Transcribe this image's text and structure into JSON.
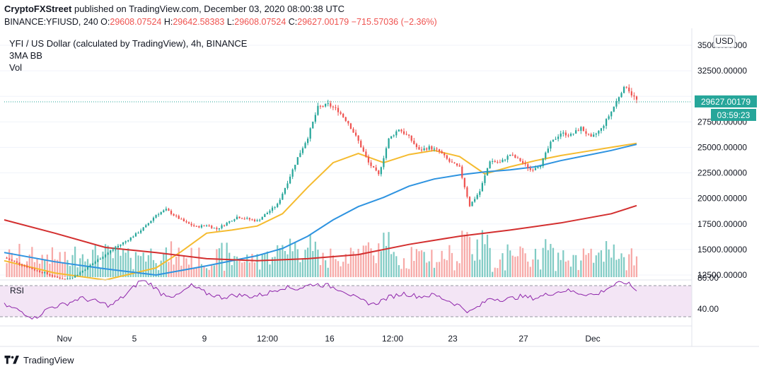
{
  "header": {
    "publisher": "CryptoFXStreet",
    "published_text": "published on TradingView.com, December 03, 2020 08:00:38 UTC",
    "symbol_line": "BINANCE:YFIUSD, 240",
    "open_label": "O:",
    "open": "29608.07524",
    "high_label": "H:",
    "high": "29642.58383",
    "low_label": "L:",
    "low": "29608.07524",
    "close_label": "C:",
    "close": "29627.00179",
    "price_now": "29627.00179",
    "change": "−715.57036 (−2.36%)"
  },
  "legend": {
    "pair": "YFI / US Dollar (calculated by TradingView), 4h, BINANCE",
    "indicator": "3MA BB",
    "volume": "Vol"
  },
  "price_axis": {
    "currency": "USD",
    "ticks": [
      "35000.00000",
      "32500.00000",
      "27500.00000",
      "25000.00000",
      "22500.00000",
      "20000.00000",
      "17500.00000",
      "15000.00000",
      "12500.00000"
    ],
    "last_price": "29627.00179",
    "countdown": "03:59:23"
  },
  "rsi": {
    "label": "RSI",
    "ticks": [
      "80.00",
      "40.00"
    ],
    "upper_band": 70,
    "lower_band": 30,
    "ylim": [
      10,
      90
    ]
  },
  "time_axis": {
    "ticks": [
      "Nov",
      "5",
      "9",
      "12:00",
      "16",
      "12:00",
      "23",
      "27",
      "Dec"
    ]
  },
  "footer": {
    "brand": "TradingView"
  },
  "colors": {
    "up": "#26a69a",
    "down": "#ef5350",
    "vol_up": "#80cbc4",
    "vol_down": "#f7a9a7",
    "ma_fast": "#f5bb2f",
    "ma_mid": "#2e93e0",
    "ma_slow": "#d32f2f",
    "rsi_line": "#8e24aa",
    "rsi_fill": "#f3e5f5"
  },
  "chart_data": {
    "type": "candlestick",
    "ylim": [
      12500,
      35000
    ],
    "close_path": [
      [
        0,
        14200
      ],
      [
        4,
        13800
      ],
      [
        8,
        13400
      ],
      [
        12,
        13000
      ],
      [
        16,
        12700
      ],
      [
        20,
        12300
      ],
      [
        24,
        12100
      ],
      [
        28,
        12400
      ],
      [
        32,
        13100
      ],
      [
        36,
        13800
      ],
      [
        40,
        14500
      ],
      [
        44,
        15200
      ],
      [
        48,
        15800
      ],
      [
        52,
        16500
      ],
      [
        56,
        17300
      ],
      [
        60,
        18400
      ],
      [
        64,
        18900
      ],
      [
        68,
        18200
      ],
      [
        72,
        17600
      ],
      [
        76,
        17200
      ],
      [
        80,
        17400
      ],
      [
        84,
        17000
      ],
      [
        88,
        17600
      ],
      [
        92,
        18200
      ],
      [
        96,
        18000
      ],
      [
        100,
        17800
      ],
      [
        104,
        18600
      ],
      [
        108,
        19400
      ],
      [
        112,
        21600
      ],
      [
        116,
        24000
      ],
      [
        120,
        26000
      ],
      [
        124,
        28900
      ],
      [
        128,
        29200
      ],
      [
        132,
        28600
      ],
      [
        136,
        27400
      ],
      [
        140,
        25600
      ],
      [
        144,
        23500
      ],
      [
        148,
        22300
      ],
      [
        152,
        25800
      ],
      [
        156,
        26800
      ],
      [
        160,
        26000
      ],
      [
        164,
        24700
      ],
      [
        168,
        25000
      ],
      [
        172,
        24600
      ],
      [
        176,
        23600
      ],
      [
        180,
        23000
      ],
      [
        184,
        19300
      ],
      [
        188,
        20700
      ],
      [
        192,
        23700
      ],
      [
        196,
        23500
      ],
      [
        200,
        24300
      ],
      [
        204,
        23700
      ],
      [
        208,
        22800
      ],
      [
        212,
        23300
      ],
      [
        216,
        25400
      ],
      [
        220,
        26400
      ],
      [
        224,
        26200
      ],
      [
        228,
        26900
      ],
      [
        232,
        25900
      ],
      [
        236,
        26800
      ],
      [
        240,
        28500
      ],
      [
        244,
        30500
      ],
      [
        246,
        31000
      ],
      [
        248,
        30200
      ],
      [
        250,
        29627
      ]
    ],
    "ma_fast": [
      [
        0,
        13900
      ],
      [
        20,
        12700
      ],
      [
        40,
        12000
      ],
      [
        60,
        13200
      ],
      [
        70,
        14800
      ],
      [
        80,
        16600
      ],
      [
        90,
        16900
      ],
      [
        100,
        17300
      ],
      [
        110,
        18500
      ],
      [
        120,
        21100
      ],
      [
        130,
        23500
      ],
      [
        140,
        24400
      ],
      [
        150,
        23500
      ],
      [
        160,
        24300
      ],
      [
        170,
        24700
      ],
      [
        180,
        24100
      ],
      [
        190,
        22400
      ],
      [
        200,
        23100
      ],
      [
        210,
        23700
      ],
      [
        220,
        24200
      ],
      [
        230,
        24600
      ],
      [
        240,
        25000
      ],
      [
        250,
        25400
      ]
    ],
    "ma_mid": [
      [
        0,
        14700
      ],
      [
        20,
        13800
      ],
      [
        40,
        13100
      ],
      [
        60,
        12500
      ],
      [
        80,
        13400
      ],
      [
        100,
        14400
      ],
      [
        110,
        15100
      ],
      [
        120,
        16300
      ],
      [
        130,
        17900
      ],
      [
        140,
        19200
      ],
      [
        150,
        20100
      ],
      [
        160,
        21200
      ],
      [
        170,
        21900
      ],
      [
        180,
        22300
      ],
      [
        190,
        22600
      ],
      [
        200,
        22800
      ],
      [
        210,
        23100
      ],
      [
        220,
        23700
      ],
      [
        230,
        24200
      ],
      [
        240,
        24700
      ],
      [
        250,
        25300
      ]
    ],
    "ma_slow": [
      [
        0,
        17900
      ],
      [
        20,
        16600
      ],
      [
        40,
        15200
      ],
      [
        60,
        14700
      ],
      [
        80,
        14100
      ],
      [
        100,
        13900
      ],
      [
        120,
        14100
      ],
      [
        140,
        14500
      ],
      [
        160,
        15500
      ],
      [
        180,
        16300
      ],
      [
        200,
        16900
      ],
      [
        220,
        17600
      ],
      [
        240,
        18500
      ],
      [
        250,
        19300
      ]
    ],
    "rsi_path": [
      [
        0,
        45
      ],
      [
        6,
        38
      ],
      [
        12,
        28
      ],
      [
        18,
        42
      ],
      [
        24,
        46
      ],
      [
        30,
        54
      ],
      [
        36,
        50
      ],
      [
        42,
        44
      ],
      [
        48,
        58
      ],
      [
        54,
        77
      ],
      [
        58,
        72
      ],
      [
        62,
        60
      ],
      [
        68,
        56
      ],
      [
        74,
        70
      ],
      [
        80,
        60
      ],
      [
        86,
        55
      ],
      [
        92,
        58
      ],
      [
        98,
        56
      ],
      [
        104,
        60
      ],
      [
        110,
        68
      ],
      [
        116,
        66
      ],
      [
        122,
        72
      ],
      [
        128,
        70
      ],
      [
        134,
        64
      ],
      [
        140,
        52
      ],
      [
        146,
        46
      ],
      [
        152,
        55
      ],
      [
        158,
        60
      ],
      [
        164,
        56
      ],
      [
        170,
        58
      ],
      [
        176,
        50
      ],
      [
        180,
        44
      ],
      [
        184,
        36
      ],
      [
        188,
        44
      ],
      [
        192,
        54
      ],
      [
        198,
        52
      ],
      [
        204,
        56
      ],
      [
        210,
        54
      ],
      [
        216,
        60
      ],
      [
        222,
        64
      ],
      [
        228,
        60
      ],
      [
        234,
        58
      ],
      [
        238,
        66
      ],
      [
        242,
        72
      ],
      [
        246,
        74
      ],
      [
        250,
        64
      ]
    ]
  }
}
